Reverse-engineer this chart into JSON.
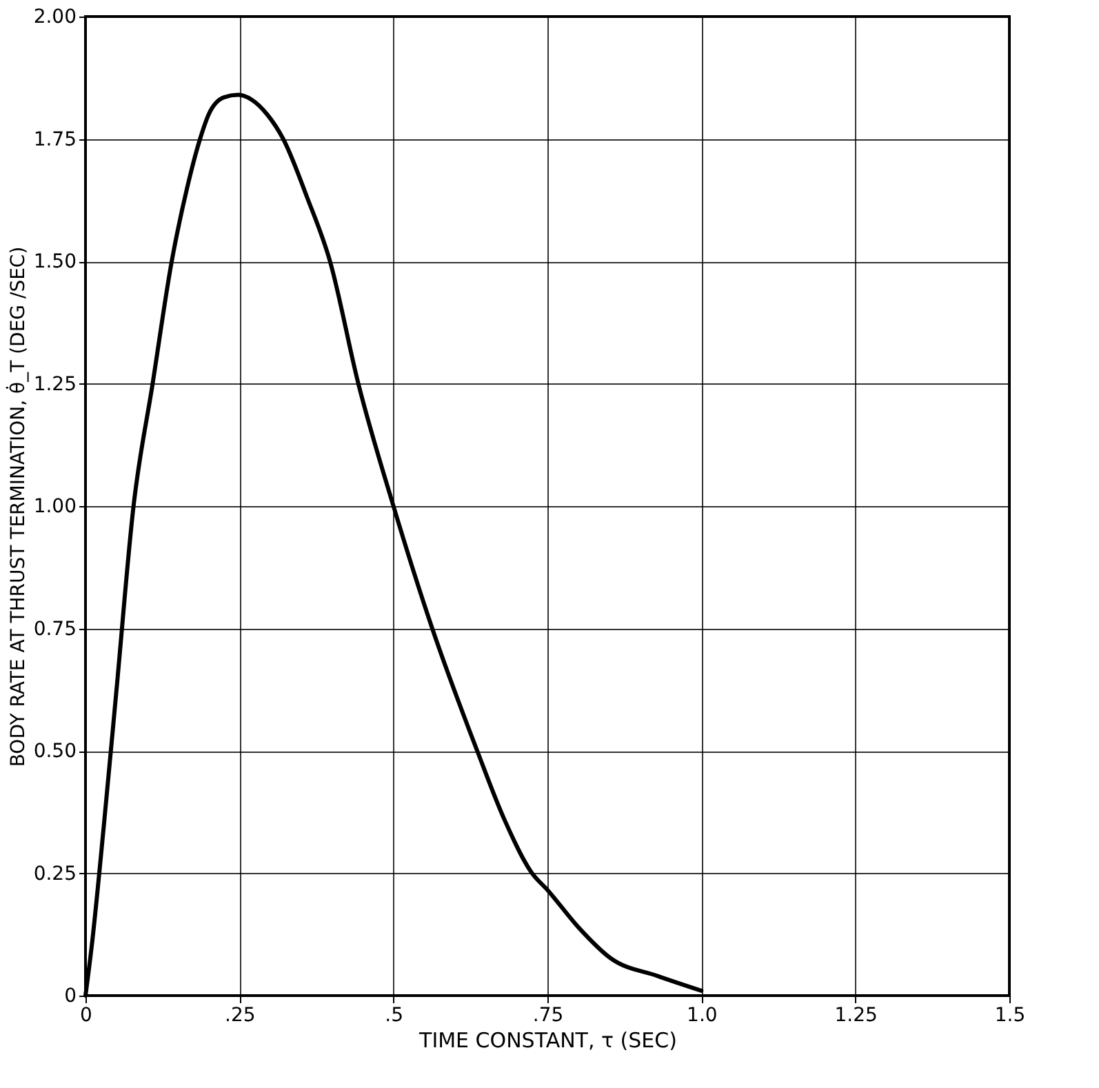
{
  "chart_data": {
    "type": "line",
    "xlabel": "TIME CONSTANT, τ (SEC)",
    "ylabel": "BODY RATE AT THRUST TERMINATION, θ̇_T (DEG /SEC)",
    "series": [
      {
        "color": "#000000",
        "x": [
          0,
          0.01,
          0.03,
          0.05,
          0.078,
          0.109,
          0.14,
          0.165,
          0.186,
          0.2,
          0.225,
          0.248,
          0.27,
          0.295,
          0.321,
          0.36,
          0.397,
          0.443,
          0.5,
          0.563,
          0.636,
          0.68,
          0.725,
          0.75,
          0.8,
          0.853,
          0.929,
          1.0
        ],
        "values": [
          0,
          0.1,
          0.35,
          0.62,
          1.0,
          1.25,
          1.5,
          1.65,
          1.75,
          1.8,
          1.835,
          1.84,
          1.83,
          1.8,
          1.75,
          1.63,
          1.5,
          1.25,
          1.0,
          0.75,
          0.5,
          0.36,
          0.25,
          0.216,
          0.14,
          0.076,
          0.04,
          0.01
        ]
      }
    ],
    "xlim": [
      0,
      1.5
    ],
    "xticks": [
      {
        "value": 0,
        "label": "0"
      },
      {
        "value": 0.25,
        "label": ".25"
      },
      {
        "value": 0.5,
        "label": ".5"
      },
      {
        "value": 0.75,
        "label": ".75"
      },
      {
        "value": 1.0,
        "label": "1.0"
      },
      {
        "value": 1.25,
        "label": "1.25"
      },
      {
        "value": 1.5,
        "label": "1.5"
      }
    ],
    "ylim": [
      0,
      2
    ],
    "yticks": [
      {
        "value": 0,
        "label": "0"
      },
      {
        "value": 0.25,
        "label": "0.25"
      },
      {
        "value": 0.5,
        "label": "0.50"
      },
      {
        "value": 0.75,
        "label": "0.75"
      },
      {
        "value": 1.0,
        "label": "1.00"
      },
      {
        "value": 1.25,
        "label": "1.25"
      },
      {
        "value": 1.5,
        "label": "1.50"
      },
      {
        "value": 1.75,
        "label": "1.75"
      },
      {
        "value": 2.0,
        "label": "2.00"
      }
    ],
    "grid": true,
    "marker": "none",
    "line_style": "solid"
  }
}
